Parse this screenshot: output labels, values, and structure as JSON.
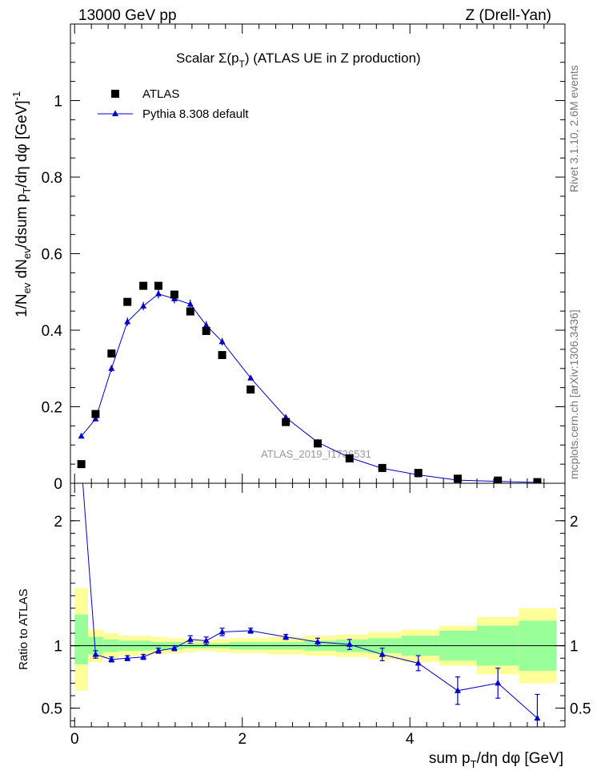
{
  "header": {
    "left": "13000 GeV pp",
    "right": "Z (Drell-Yan)"
  },
  "side_labels": {
    "rivet": "Rivet 3.1.10, 2.6M events",
    "mcplots": "mcplots.cern.ch [arXiv:1306.3436]"
  },
  "watermark": "ATLAS_2019_I1736531",
  "chart_data": [
    {
      "type": "scatter",
      "title": "Scalar Σ(pT) (ATLAS UE in Z production)",
      "title_main": "Scalar ",
      "title_sigma": "Σ(p",
      "title_sub": "T",
      "title_tail": ") (ATLAS UE in Z production)",
      "ylabel": "1/Nev dNev/dsum pT/dη dφ [GeV]^-1",
      "xlim": [
        -0.05,
        5.85
      ],
      "ylim": [
        0,
        1.2
      ],
      "yticks": [
        0,
        0.2,
        0.4,
        0.6,
        0.8,
        1
      ],
      "ytick_labels": [
        "0",
        "0.2",
        "0.4",
        "0.6",
        "0.8",
        "1"
      ],
      "legend": {
        "placement": "top-left",
        "entries": [
          "ATLAS",
          "Pythia 8.308 default"
        ]
      },
      "series": [
        {
          "name": "ATLAS",
          "marker": "square",
          "color": "#000000",
          "x": [
            0.08,
            0.25,
            0.44,
            0.63,
            0.82,
            1.0,
            1.19,
            1.38,
            1.57,
            1.76,
            2.1,
            2.52,
            2.9,
            3.28,
            3.67,
            4.1,
            4.57,
            5.05,
            5.52
          ],
          "y": [
            0.05,
            0.181,
            0.339,
            0.474,
            0.516,
            0.516,
            0.493,
            0.449,
            0.398,
            0.335,
            0.245,
            0.16,
            0.104,
            0.065,
            0.04,
            0.027,
            0.012,
            0.007,
            0.003
          ]
        },
        {
          "name": "Pythia 8.308 default",
          "marker": "triangle",
          "color": "#0000cc",
          "x": [
            0.08,
            0.25,
            0.44,
            0.63,
            0.82,
            1.0,
            1.19,
            1.38,
            1.57,
            1.76,
            2.1,
            2.52,
            2.9,
            3.28,
            3.67,
            4.1,
            4.57,
            5.05,
            5.52
          ],
          "y": [
            0.123,
            0.168,
            0.3,
            0.422,
            0.463,
            0.495,
            0.482,
            0.468,
            0.413,
            0.37,
            0.275,
            0.172,
            0.107,
            0.067,
            0.039,
            0.022,
            0.008,
            0.005,
            0.002
          ],
          "err": [
            0.004,
            0.005,
            0.009,
            0.011,
            0.011,
            0.012,
            0.012,
            0.012,
            0.011,
            0.01,
            0.004,
            0.004,
            0.003,
            0.002,
            0.001,
            0.001,
            0.001,
            0.001,
            0.001
          ]
        }
      ]
    },
    {
      "type": "line",
      "ylabel": "Ratio to ATLAS",
      "xlabel": "sum pT/dη dφ [GeV]",
      "xlim": [
        -0.05,
        5.85
      ],
      "ylim": [
        0.35,
        2.3
      ],
      "xticks": [
        0,
        2,
        4
      ],
      "xtick_labels": [
        "0",
        "2",
        "4"
      ],
      "yticks": [
        0.5,
        1,
        2
      ],
      "ytick_labels": [
        "0.5",
        "1",
        "2"
      ],
      "bands": {
        "edges": [
          0.0,
          0.16,
          0.34,
          0.53,
          0.72,
          0.91,
          1.1,
          1.29,
          1.47,
          1.66,
          1.85,
          2.3,
          2.74,
          3.12,
          3.5,
          3.9,
          4.35,
          4.8,
          5.3,
          5.75
        ],
        "yellow_lo": [
          0.64,
          0.87,
          0.9,
          0.92,
          0.92,
          0.93,
          0.94,
          0.95,
          0.96,
          0.95,
          0.94,
          0.93,
          0.92,
          0.91,
          0.89,
          0.87,
          0.84,
          0.77,
          0.7
        ],
        "yellow_hi": [
          1.46,
          1.13,
          1.1,
          1.08,
          1.08,
          1.07,
          1.06,
          1.05,
          1.04,
          1.05,
          1.06,
          1.07,
          1.08,
          1.09,
          1.11,
          1.13,
          1.16,
          1.23,
          1.3
        ],
        "green_lo": [
          0.85,
          0.93,
          0.95,
          0.96,
          0.96,
          0.97,
          0.97,
          0.98,
          0.98,
          0.98,
          0.97,
          0.97,
          0.96,
          0.95,
          0.94,
          0.92,
          0.88,
          0.84,
          0.8
        ],
        "green_hi": [
          1.25,
          1.07,
          1.05,
          1.04,
          1.04,
          1.03,
          1.03,
          1.02,
          1.02,
          1.02,
          1.03,
          1.03,
          1.04,
          1.05,
          1.06,
          1.08,
          1.12,
          1.16,
          1.2
        ],
        "yellow_color": "#ffff99",
        "green_color": "#99ff99"
      },
      "series": [
        {
          "name": "Pythia 8.308 default",
          "color": "#0000cc",
          "x": [
            0.08,
            0.25,
            0.44,
            0.63,
            0.82,
            1.0,
            1.19,
            1.38,
            1.57,
            1.76,
            2.1,
            2.52,
            2.9,
            3.28,
            3.67,
            4.1,
            4.57,
            5.05,
            5.52
          ],
          "y": [
            2.46,
            0.93,
            0.89,
            0.9,
            0.91,
            0.96,
            0.98,
            1.05,
            1.04,
            1.11,
            1.12,
            1.07,
            1.03,
            1.01,
            0.93,
            0.86,
            0.64,
            0.7,
            0.42
          ],
          "err": [
            0.0,
            0.03,
            0.02,
            0.02,
            0.02,
            0.02,
            0.02,
            0.03,
            0.03,
            0.03,
            0.02,
            0.02,
            0.03,
            0.04,
            0.05,
            0.06,
            0.11,
            0.12,
            0.19
          ]
        }
      ]
    }
  ]
}
